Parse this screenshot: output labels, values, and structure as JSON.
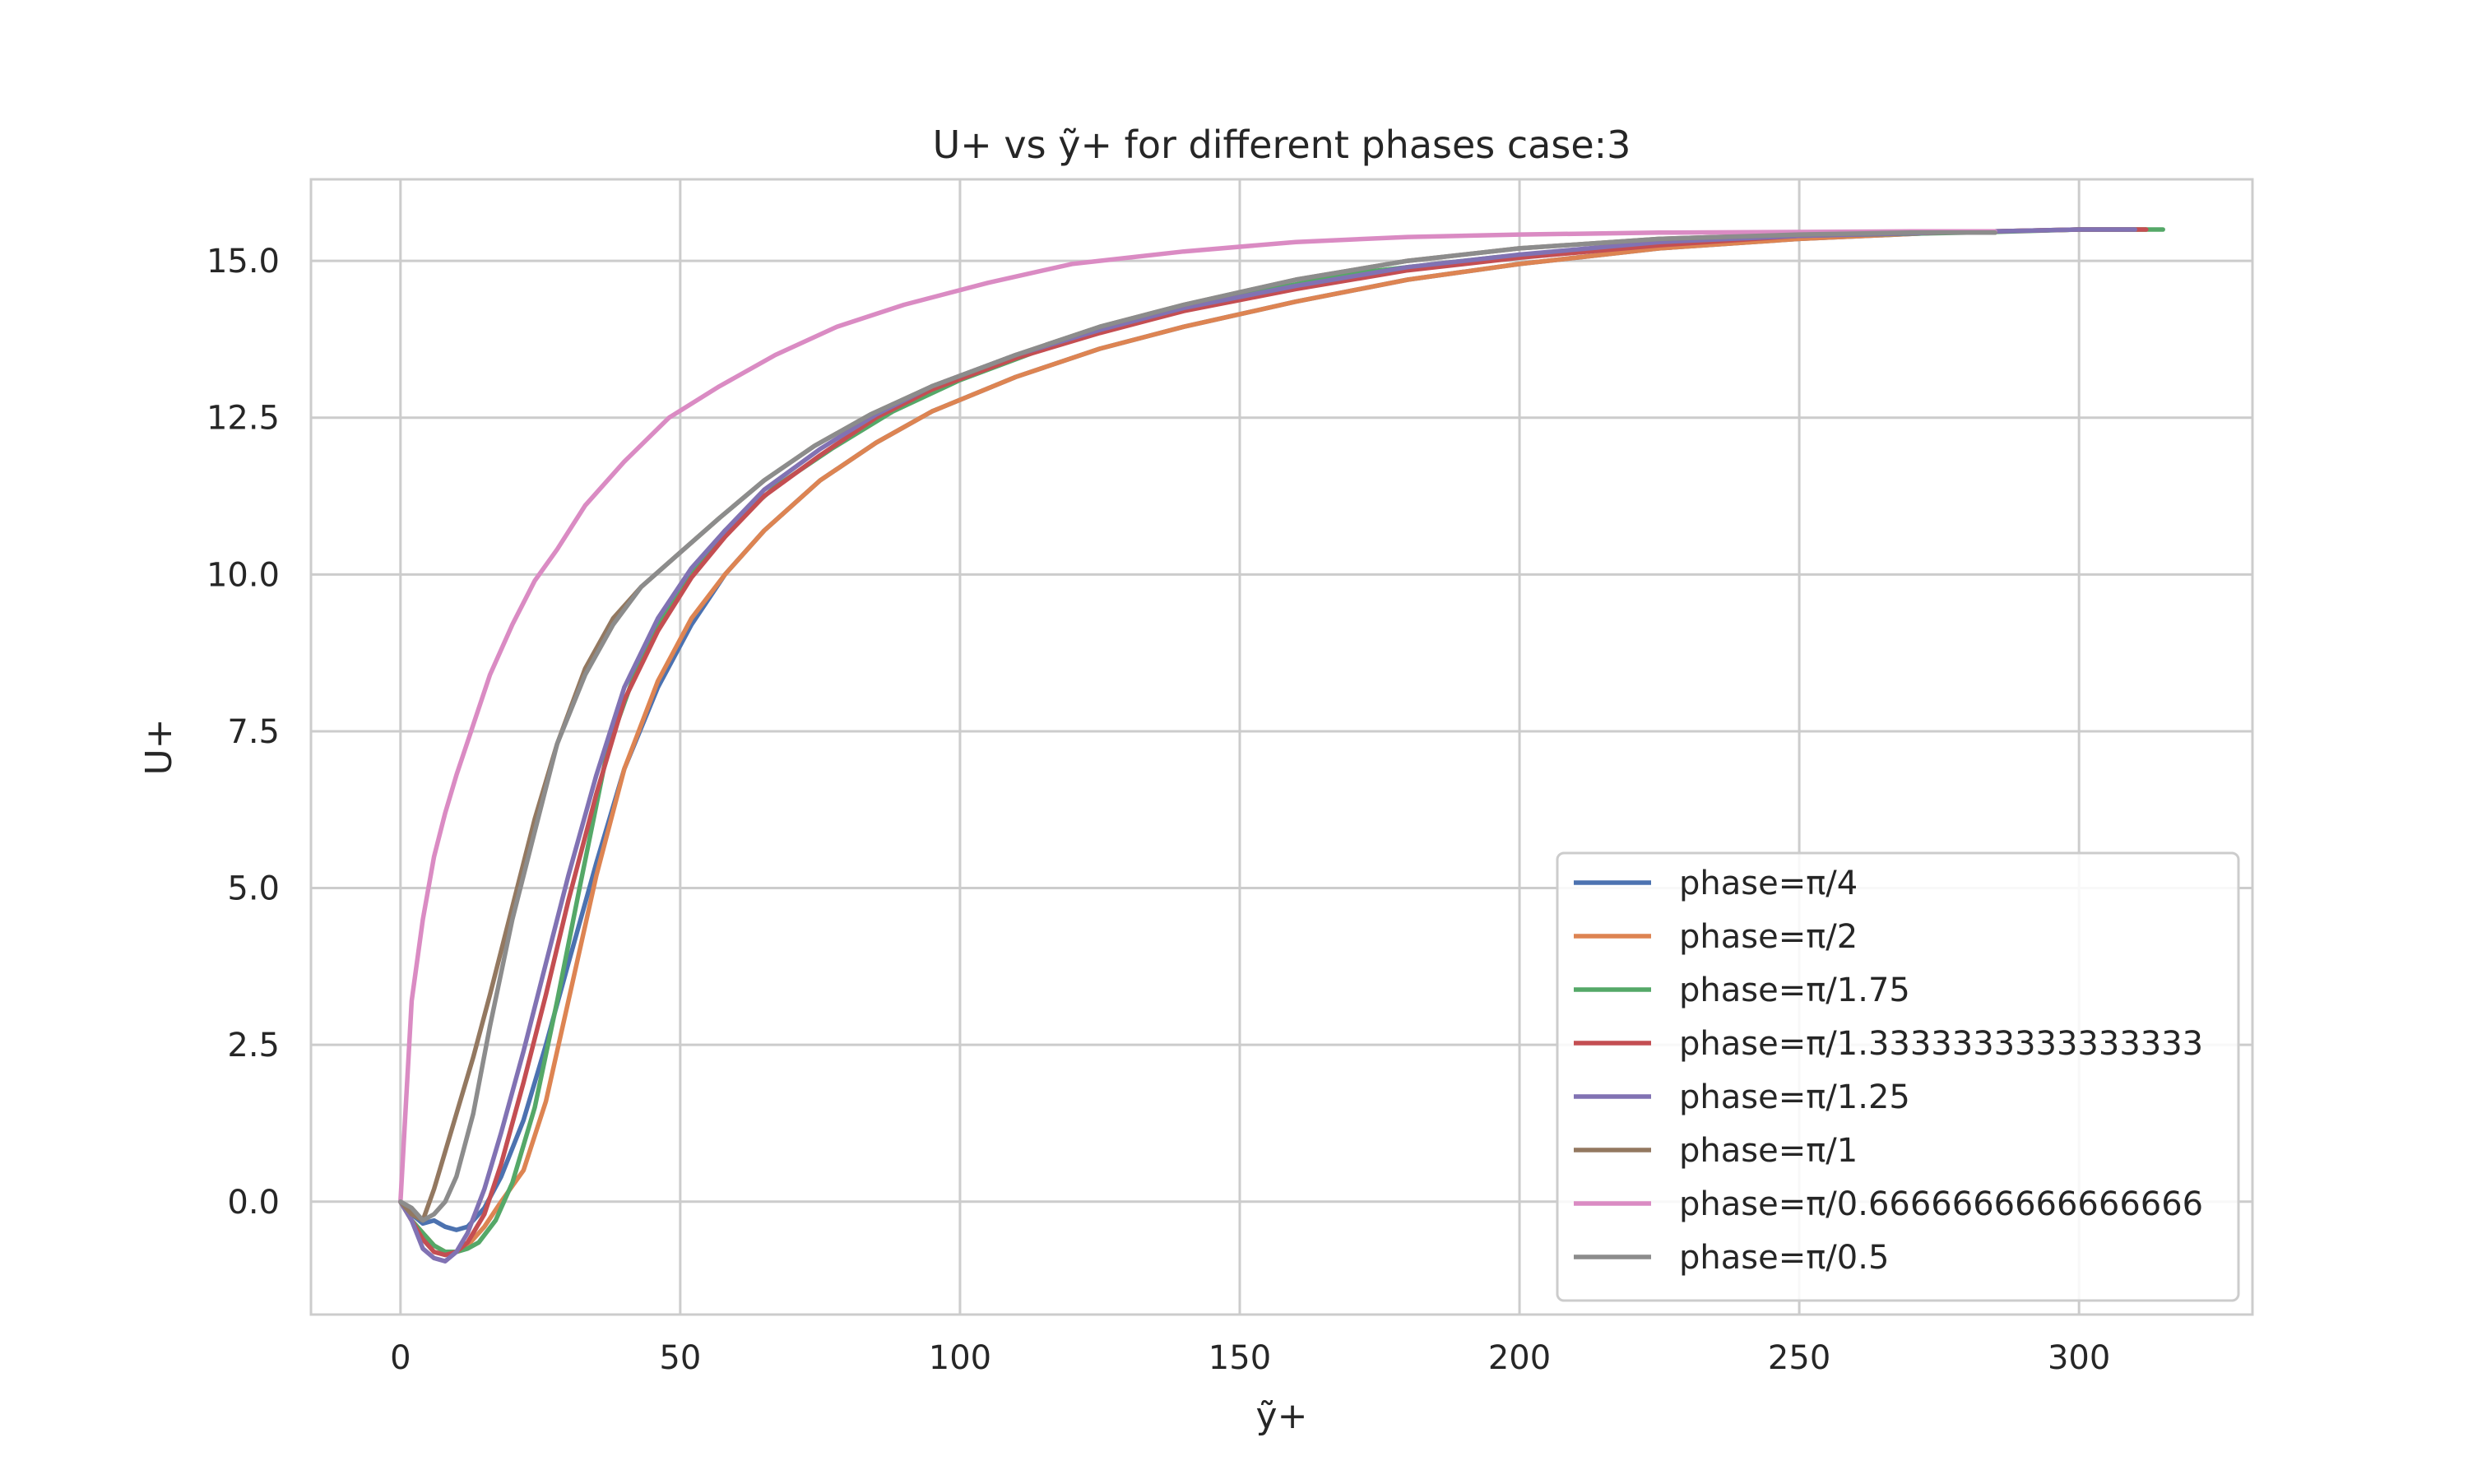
{
  "chart_data": {
    "type": "line",
    "title": "U+ vs ỹ+ for different phases case:3",
    "xlabel": "ỹ+",
    "ylabel": "U+",
    "xlim": [
      -16,
      331
    ],
    "ylim": [
      -1.8,
      16.3
    ],
    "xticks": [
      0,
      50,
      100,
      150,
      200,
      250,
      300
    ],
    "yticks": [
      0.0,
      2.5,
      5.0,
      7.5,
      10.0,
      12.5,
      15.0
    ],
    "xtick_labels": [
      "0",
      "50",
      "100",
      "150",
      "200",
      "250",
      "300"
    ],
    "ytick_labels": [
      "0.0",
      "2.5",
      "5.0",
      "7.5",
      "10.0",
      "12.5",
      "15.0"
    ],
    "grid": true,
    "legend_position": "lower-right",
    "series": [
      {
        "name": "phase=π/4",
        "color": "#4c72b0",
        "x": [
          0,
          2,
          4,
          6,
          8,
          10,
          12,
          15,
          18,
          22,
          26,
          30,
          35,
          40,
          46,
          52,
          58,
          65,
          75,
          85,
          95,
          110,
          125,
          140,
          160,
          180,
          200,
          225,
          250,
          275,
          300,
          310
        ],
        "y": [
          0.0,
          -0.2,
          -0.35,
          -0.3,
          -0.4,
          -0.45,
          -0.4,
          -0.1,
          0.4,
          1.3,
          2.5,
          3.8,
          5.4,
          6.9,
          8.2,
          9.2,
          10.0,
          10.7,
          11.5,
          12.1,
          12.6,
          13.15,
          13.6,
          13.95,
          14.35,
          14.7,
          14.95,
          15.2,
          15.35,
          15.45,
          15.5,
          15.5
        ]
      },
      {
        "name": "phase=π/2",
        "color": "#dd8452",
        "x": [
          0,
          2,
          4,
          6,
          8,
          10,
          12,
          15,
          18,
          22,
          26,
          30,
          35,
          40,
          46,
          52,
          58,
          65,
          75,
          85,
          95,
          110,
          125,
          140,
          160,
          180,
          200,
          225,
          250,
          275,
          300,
          312
        ],
        "y": [
          0.0,
          -0.3,
          -0.5,
          -0.7,
          -0.8,
          -0.8,
          -0.7,
          -0.4,
          0.0,
          0.5,
          1.6,
          3.2,
          5.2,
          6.9,
          8.3,
          9.3,
          10.0,
          10.7,
          11.5,
          12.1,
          12.6,
          13.15,
          13.6,
          13.95,
          14.35,
          14.7,
          14.95,
          15.2,
          15.35,
          15.45,
          15.5,
          15.5
        ]
      },
      {
        "name": "phase=π/1.75",
        "color": "#55a868",
        "x": [
          0,
          2,
          4,
          6,
          8,
          10,
          12,
          14,
          17,
          20,
          24,
          28,
          32,
          37,
          43,
          50,
          58,
          67,
          77,
          88,
          100,
          115,
          130,
          150,
          170,
          195,
          220,
          250,
          280,
          300,
          315
        ],
        "y": [
          0.0,
          -0.3,
          -0.5,
          -0.7,
          -0.8,
          -0.8,
          -0.75,
          -0.65,
          -0.3,
          0.3,
          1.5,
          3.2,
          5.0,
          7.2,
          8.7,
          9.8,
          10.7,
          11.4,
          12.0,
          12.6,
          13.1,
          13.6,
          14.05,
          14.45,
          14.8,
          15.05,
          15.25,
          15.4,
          15.45,
          15.5,
          15.5
        ]
      },
      {
        "name": "phase=π/1.3333333333333333",
        "color": "#c44e52",
        "x": [
          0,
          2,
          4,
          6,
          8,
          10,
          12,
          15,
          18,
          22,
          26,
          30,
          35,
          40,
          46,
          52,
          58,
          65,
          75,
          85,
          95,
          110,
          125,
          140,
          160,
          180,
          200,
          225,
          250,
          275,
          300,
          312
        ],
        "y": [
          0.0,
          -0.3,
          -0.6,
          -0.8,
          -0.85,
          -0.8,
          -0.65,
          -0.2,
          0.6,
          1.9,
          3.3,
          4.8,
          6.5,
          8.0,
          9.1,
          9.95,
          10.6,
          11.25,
          11.9,
          12.5,
          12.95,
          13.45,
          13.85,
          14.2,
          14.55,
          14.85,
          15.05,
          15.25,
          15.4,
          15.45,
          15.5,
          15.5
        ]
      },
      {
        "name": "phase=π/1.25",
        "color": "#8172b3",
        "x": [
          0,
          2,
          4,
          6,
          8,
          10,
          12,
          15,
          18,
          22,
          26,
          30,
          35,
          40,
          46,
          52,
          58,
          65,
          75,
          85,
          95,
          110,
          125,
          140,
          160,
          180,
          200,
          225,
          250,
          275,
          300,
          310
        ],
        "y": [
          0.0,
          -0.3,
          -0.75,
          -0.9,
          -0.95,
          -0.8,
          -0.5,
          0.2,
          1.1,
          2.4,
          3.8,
          5.2,
          6.8,
          8.2,
          9.3,
          10.1,
          10.7,
          11.35,
          12.0,
          12.55,
          13.0,
          13.5,
          13.9,
          14.25,
          14.6,
          14.9,
          15.1,
          15.3,
          15.4,
          15.45,
          15.5,
          15.5
        ]
      },
      {
        "name": "phase=π/1",
        "color": "#937860",
        "x": [
          0,
          2,
          4,
          6,
          8,
          10,
          13,
          16,
          20,
          24,
          28,
          33,
          38,
          43,
          50,
          57,
          65,
          74,
          84,
          95,
          110,
          125,
          140,
          160,
          180,
          200,
          225,
          250,
          270,
          285
        ],
        "y": [
          0.0,
          -0.2,
          -0.3,
          0.2,
          0.8,
          1.4,
          2.3,
          3.3,
          4.7,
          6.1,
          7.3,
          8.5,
          9.3,
          9.8,
          10.35,
          10.9,
          11.5,
          12.05,
          12.55,
          13.0,
          13.5,
          13.95,
          14.3,
          14.7,
          15.0,
          15.2,
          15.35,
          15.42,
          15.45,
          15.45
        ]
      },
      {
        "name": "phase=π/0.6666666666666666",
        "color": "#da8bc3",
        "x": [
          0,
          2,
          4,
          6,
          8,
          10,
          13,
          16,
          20,
          24,
          28,
          33,
          40,
          48,
          57,
          67,
          78,
          90,
          105,
          120,
          140,
          160,
          180,
          200,
          225,
          250,
          270,
          285
        ],
        "y": [
          0.0,
          3.2,
          4.5,
          5.5,
          6.2,
          6.8,
          7.6,
          8.4,
          9.2,
          9.9,
          10.4,
          11.1,
          11.8,
          12.5,
          13.0,
          13.5,
          13.95,
          14.3,
          14.65,
          14.95,
          15.15,
          15.3,
          15.38,
          15.42,
          15.45,
          15.46,
          15.47,
          15.47
        ]
      },
      {
        "name": "phase=π/0.5",
        "color": "#8c8c8c",
        "x": [
          0,
          2,
          4,
          6,
          8,
          10,
          13,
          16,
          20,
          24,
          28,
          33,
          38,
          43,
          50,
          57,
          65,
          74,
          84,
          95,
          110,
          125,
          140,
          160,
          180,
          200,
          225,
          250,
          270,
          285
        ],
        "y": [
          0.0,
          -0.1,
          -0.3,
          -0.2,
          0.0,
          0.4,
          1.4,
          2.8,
          4.5,
          5.9,
          7.3,
          8.4,
          9.2,
          9.8,
          10.35,
          10.9,
          11.5,
          12.05,
          12.55,
          13.0,
          13.5,
          13.95,
          14.3,
          14.7,
          15.0,
          15.2,
          15.35,
          15.42,
          15.45,
          15.45
        ]
      }
    ]
  }
}
